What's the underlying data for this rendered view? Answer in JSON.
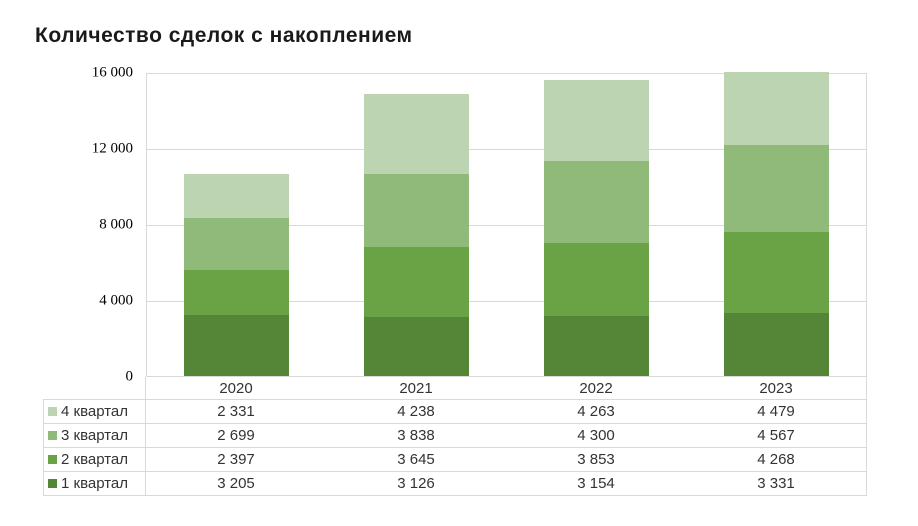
{
  "chart_data": {
    "type": "bar",
    "subtype": "stacked-vertical",
    "title": "Количество сделок с накоплением",
    "categories": [
      "2020",
      "2021",
      "2022",
      "2023"
    ],
    "series": [
      {
        "name": "1 квартал",
        "color": "#558637",
        "values": [
          3205,
          3126,
          3154,
          3331
        ]
      },
      {
        "name": "2 квартал",
        "color": "#6AA246",
        "values": [
          2397,
          3645,
          3853,
          4268
        ]
      },
      {
        "name": "3 квартал",
        "color": "#8FBA79",
        "values": [
          2699,
          3838,
          4300,
          4567
        ]
      },
      {
        "name": "4 квартал",
        "color": "#BCD4B1",
        "values": [
          2331,
          4238,
          4263,
          4479
        ]
      }
    ],
    "ylim": [
      0,
      16000
    ],
    "yticks": [
      {
        "label": "0",
        "value": 0
      },
      {
        "label": "4 000",
        "value": 4000
      },
      {
        "label": "8 000",
        "value": 8000
      },
      {
        "label": "12 000",
        "value": 12000
      },
      {
        "label": "16 000",
        "value": 16000
      }
    ],
    "grid": true,
    "legend_position": "data-table-left",
    "gridline_color": "#d9d9d9",
    "data_table": {
      "row_order_top_to_bottom": [
        "4 квартал",
        "3 квартал",
        "2 квартал",
        "1 квартал"
      ],
      "number_format_example": "2 331"
    }
  }
}
